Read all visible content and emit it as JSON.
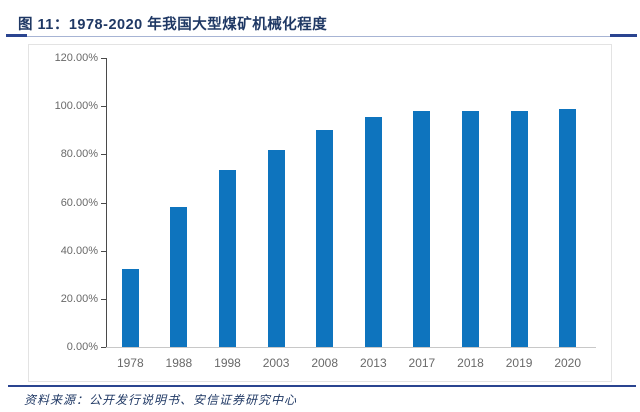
{
  "title": {
    "text": "图 11：1978-2020 年我国大型煤矿机械化程度"
  },
  "source": {
    "text": "资料来源：公开发行说明书、安信证券研究中心"
  },
  "colors": {
    "bar": "#0E74BE",
    "title_navy": "#1F3864",
    "accent_rule": "#2A4490",
    "thin_rule": "#A7B4D4",
    "axis_line": "#4a4a4a",
    "x_baseline": "#c8c8c8",
    "tick_label_gray": "#696969",
    "frame_border": "#e3e3e3"
  },
  "chart_data": {
    "type": "bar",
    "title": "1978-2020 年我国大型煤矿机械化程度",
    "categories": [
      "1978",
      "1988",
      "1998",
      "2003",
      "2008",
      "2013",
      "2017",
      "2018",
      "2019",
      "2020"
    ],
    "values": [
      32.5,
      58.3,
      73.7,
      81.7,
      90.0,
      95.5,
      98.0,
      98.0,
      98.0,
      99.0
    ],
    "unit": "%",
    "xlabel": "",
    "ylabel": "",
    "ylim": [
      0,
      120
    ],
    "ytick_step": 20,
    "ytick_labels": [
      "0.00%",
      "20.00%",
      "40.00%",
      "60.00%",
      "80.00%",
      "100.00%",
      "120.00%"
    ],
    "grid": false,
    "legend": "none",
    "bar_color": "#0E74BE"
  }
}
